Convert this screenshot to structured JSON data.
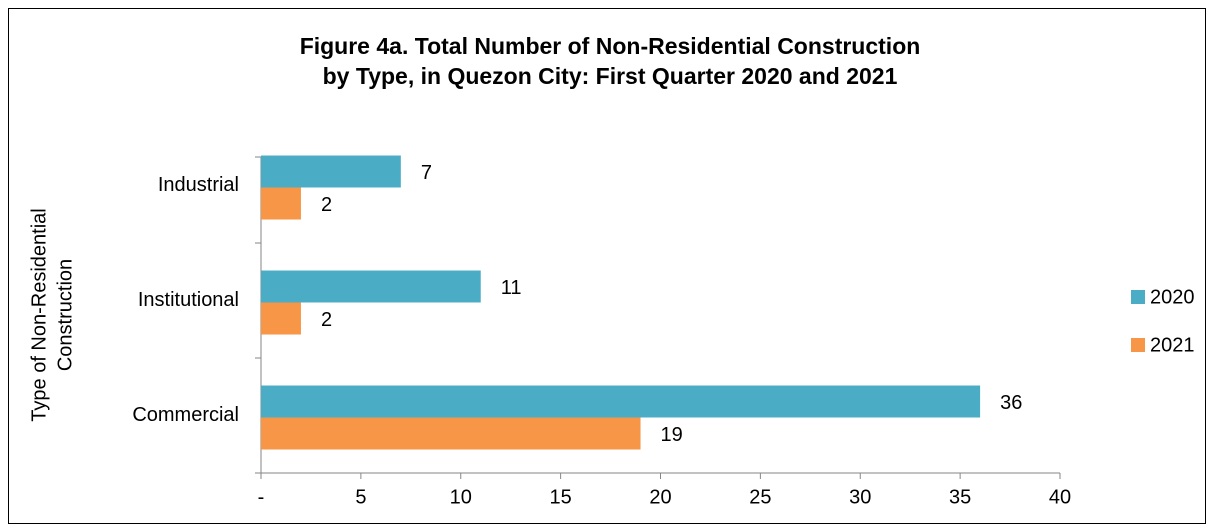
{
  "chart_data": {
    "type": "hbar",
    "title": [
      "Figure 4a. Total Number of Non-Residential Construction",
      "by Type, in Quezon City: First Quarter 2020 and 2021"
    ],
    "y_label": [
      "Type of Non-Residential",
      "Construction"
    ],
    "categories": [
      "Commercial",
      "Institutional",
      "Industrial"
    ],
    "series": [
      {
        "name": "2020",
        "color": "#4bacc6",
        "values": [
          36,
          11,
          7
        ]
      },
      {
        "name": "2021",
        "color": "#f79646",
        "values": [
          19,
          2,
          2
        ]
      }
    ],
    "xlim": [
      0,
      40
    ],
    "xticks": [
      {
        "value": 0,
        "label": "-"
      },
      5,
      10,
      15,
      20,
      25,
      30,
      35,
      40
    ],
    "legend": "right",
    "data_labels": true
  }
}
